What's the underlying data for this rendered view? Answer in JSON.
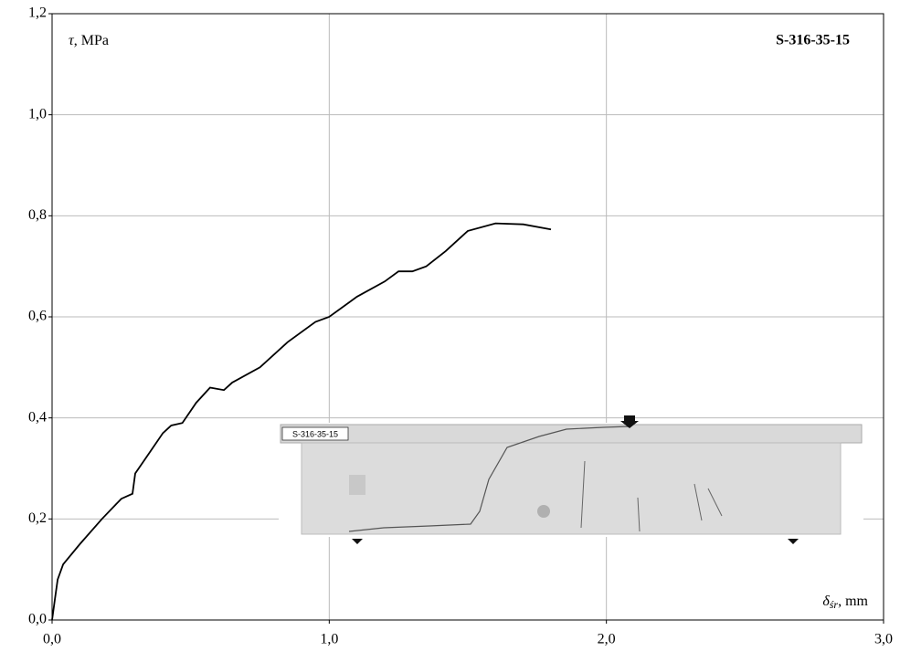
{
  "chart_data": {
    "type": "line",
    "title": "S-316-35-15",
    "y_label_symbol": "τ",
    "y_label_rest": ", MPa",
    "x_label_symbol": "δ",
    "x_label_sub": "śr",
    "x_label_rest": ", mm",
    "photo_label": "S-316-35-15",
    "color": "#000000",
    "grid": true,
    "xlim": [
      0,
      3
    ],
    "ylim": [
      0,
      1.2
    ],
    "xticks": [
      {
        "value": 0,
        "label": "0,0"
      },
      {
        "value": 1,
        "label": "1,0"
      },
      {
        "value": 2,
        "label": "2,0"
      },
      {
        "value": 3,
        "label": "3,0"
      }
    ],
    "yticks": [
      {
        "value": 0,
        "label": "0,0"
      },
      {
        "value": 0.2,
        "label": "0,2"
      },
      {
        "value": 0.4,
        "label": "0,4"
      },
      {
        "value": 0.6,
        "label": "0,6"
      },
      {
        "value": 0.8,
        "label": "0,8"
      },
      {
        "value": 1.0,
        "label": "1,0"
      },
      {
        "value": 1.2,
        "label": "1,2"
      }
    ],
    "x": [
      0,
      0.01,
      0.02,
      0.04,
      0.1,
      0.18,
      0.25,
      0.29,
      0.3,
      0.35,
      0.4,
      0.43,
      0.47,
      0.52,
      0.57,
      0.62,
      0.65,
      0.75,
      0.85,
      0.95,
      1.0,
      1.1,
      1.2,
      1.25,
      1.3,
      1.35,
      1.42,
      1.5,
      1.6,
      1.7,
      1.8
    ],
    "values": [
      0,
      0.04,
      0.08,
      0.11,
      0.15,
      0.2,
      0.24,
      0.25,
      0.29,
      0.33,
      0.37,
      0.385,
      0.39,
      0.43,
      0.46,
      0.455,
      0.47,
      0.5,
      0.55,
      0.59,
      0.6,
      0.64,
      0.67,
      0.69,
      0.69,
      0.7,
      0.73,
      0.77,
      0.785,
      0.783,
      0.773
    ]
  }
}
